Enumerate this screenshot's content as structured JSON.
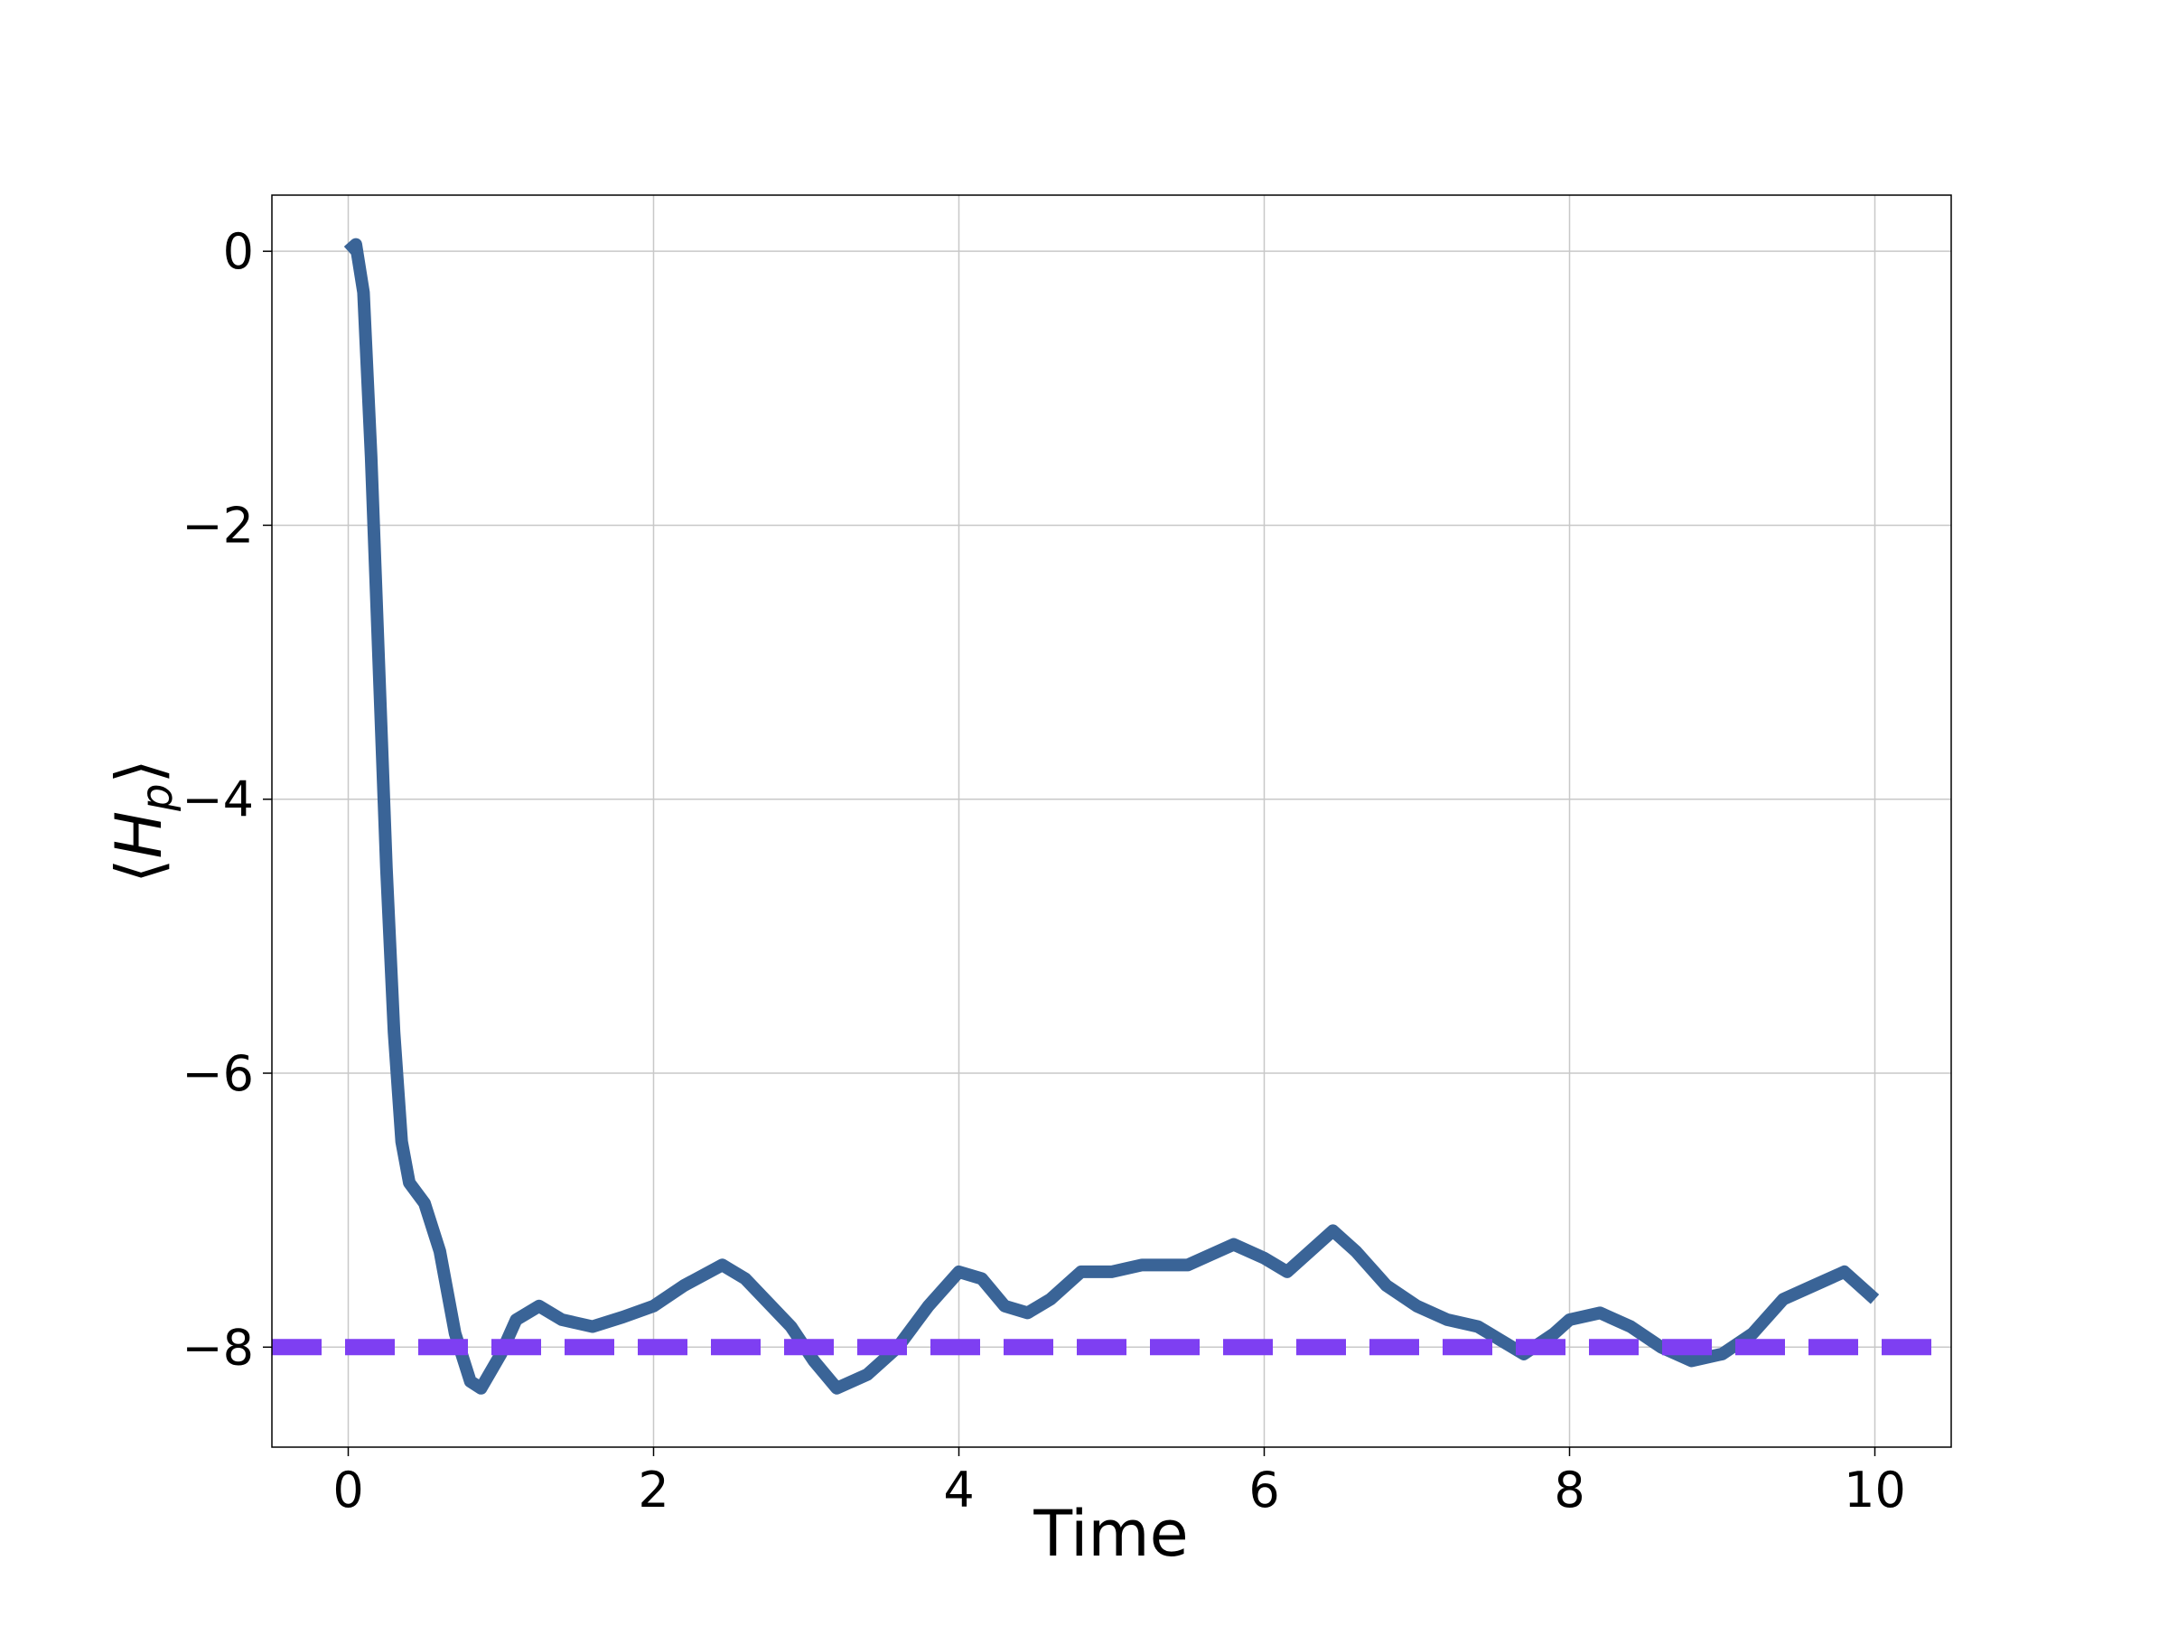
{
  "chart_data": {
    "type": "line",
    "xlabel": "Time",
    "ylabel": [
      "⟨",
      "H",
      "p",
      "⟩"
    ],
    "x": [
      0,
      0.05,
      0.1,
      0.15,
      0.2,
      0.25,
      0.3,
      0.35,
      0.4,
      0.5,
      0.6,
      0.7,
      0.8,
      0.87,
      1.0,
      1.1,
      1.25,
      1.4,
      1.6,
      1.8,
      2.0,
      2.2,
      2.45,
      2.6,
      2.9,
      3.05,
      3.2,
      3.4,
      3.6,
      3.8,
      4.0,
      4.15,
      4.3,
      4.45,
      4.6,
      4.8,
      5.0,
      5.2,
      5.5,
      5.8,
      6.0,
      6.15,
      6.3,
      6.45,
      6.6,
      6.8,
      7.0,
      7.2,
      7.4,
      7.55,
      7.7,
      7.9,
      8.0,
      8.2,
      8.4,
      8.6,
      8.8,
      9.0,
      9.2,
      9.4,
      9.6,
      9.8,
      10.0
    ],
    "series": [
      {
        "color": "#3a6497",
        "values": [
          0,
          0.05,
          -0.3,
          -1.5,
          -3,
          -4.5,
          -5.7,
          -6.5,
          -6.8,
          -6.95,
          -7.3,
          -7.9,
          -8.25,
          -8.3,
          -8.05,
          -7.8,
          -7.7,
          -7.8,
          -7.85,
          -7.78,
          -7.7,
          -7.55,
          -7.4,
          -7.5,
          -7.85,
          -8.1,
          -8.3,
          -8.2,
          -8.0,
          -7.7,
          -7.45,
          -7.5,
          -7.7,
          -7.75,
          -7.65,
          -7.45,
          -7.45,
          -7.4,
          -7.4,
          -7.25,
          -7.35,
          -7.45,
          -7.3,
          -7.15,
          -7.3,
          -7.55,
          -7.7,
          -7.8,
          -7.85,
          -7.95,
          -8.05,
          -7.9,
          -7.8,
          -7.75,
          -7.85,
          -8.0,
          -8.1,
          -8.05,
          -7.9,
          -7.65,
          -7.55,
          -7.45,
          -7.65
        ]
      }
    ],
    "hline": {
      "value": -8,
      "color": "#7e3ff2"
    },
    "xlim": [
      -0.5,
      10.5
    ],
    "ylim": [
      -8.73,
      0.41
    ],
    "xticks": [
      0,
      2,
      4,
      6,
      8,
      10
    ],
    "yticks": [
      {
        "value": -8,
        "label": "−8"
      },
      {
        "value": -6,
        "label": "−6"
      },
      {
        "value": -4,
        "label": "−4"
      },
      {
        "value": -2,
        "label": "−2"
      },
      0
    ],
    "grid": true
  }
}
